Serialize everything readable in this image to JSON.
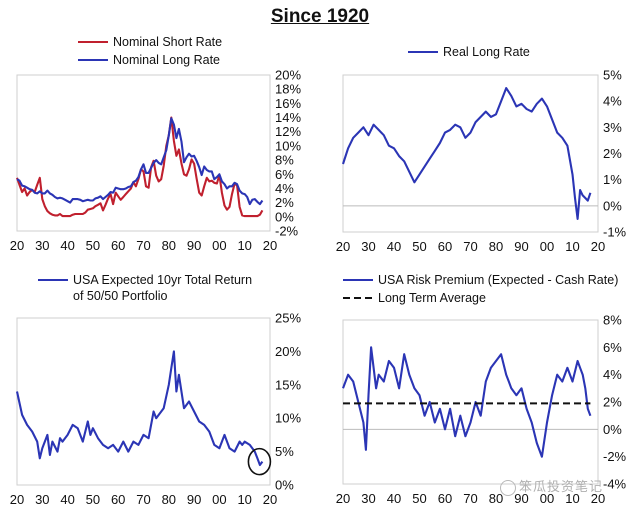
{
  "figure": {
    "title": "Since 1920",
    "watermark": "笨瓜投资笔记"
  },
  "chart_data": [
    {
      "type": "line",
      "x_ticks": [
        "20",
        "30",
        "40",
        "50",
        "60",
        "70",
        "80",
        "90",
        "00",
        "10",
        "20"
      ],
      "y_ticks": [
        "20%",
        "18%",
        "16%",
        "14%",
        "12%",
        "10%",
        "8%",
        "6%",
        "4%",
        "2%",
        "0%",
        "-2%"
      ],
      "ylim": [
        -2,
        20
      ],
      "xlim": [
        1920,
        2020
      ],
      "y_axis_side": "right",
      "legend": "top-left",
      "series": [
        {
          "name": "Nominal Short Rate",
          "color": "#c0202e",
          "x": [
            1920,
            1921,
            1922,
            1923,
            1924,
            1925,
            1926,
            1927,
            1928,
            1929,
            1930,
            1931,
            1932,
            1933,
            1934,
            1935,
            1936,
            1937,
            1938,
            1939,
            1940,
            1941,
            1942,
            1943,
            1944,
            1945,
            1946,
            1947,
            1948,
            1949,
            1950,
            1951,
            1952,
            1953,
            1954,
            1955,
            1956,
            1957,
            1958,
            1959,
            1960,
            1961,
            1962,
            1963,
            1964,
            1965,
            1966,
            1967,
            1968,
            1969,
            1970,
            1971,
            1972,
            1973,
            1974,
            1975,
            1976,
            1977,
            1978,
            1979,
            1980,
            1981,
            1982,
            1983,
            1984,
            1985,
            1986,
            1987,
            1988,
            1989,
            1990,
            1991,
            1992,
            1993,
            1994,
            1995,
            1996,
            1997,
            1998,
            1999,
            2000,
            2001,
            2002,
            2003,
            2004,
            2005,
            2006,
            2007,
            2008,
            2009,
            2010,
            2011,
            2012,
            2013,
            2014,
            2015,
            2016,
            2017
          ],
          "values": [
            5.5,
            4.5,
            3.5,
            4.0,
            3.0,
            3.5,
            3.8,
            3.5,
            4.5,
            5.5,
            2.5,
            1.5,
            0.8,
            0.5,
            0.3,
            0.2,
            0.2,
            0.4,
            0.1,
            0.1,
            0.1,
            0.1,
            0.3,
            0.4,
            0.4,
            0.4,
            0.4,
            0.6,
            1.0,
            1.1,
            1.2,
            1.5,
            1.7,
            1.9,
            0.9,
            1.7,
            2.6,
            3.2,
            1.8,
            3.4,
            2.9,
            2.4,
            2.8,
            3.2,
            3.6,
            4.0,
            4.9,
            4.3,
            5.3,
            6.7,
            6.4,
            4.3,
            4.1,
            7.0,
            7.9,
            5.8,
            5.0,
            5.3,
            7.2,
            10.0,
            11.5,
            14.0,
            10.7,
            8.6,
            9.5,
            7.5,
            6.0,
            5.8,
            6.7,
            8.1,
            7.5,
            5.4,
            3.4,
            3.0,
            4.3,
            5.5,
            5.0,
            5.1,
            4.8,
            4.7,
            5.9,
            3.4,
            1.6,
            1.0,
            1.4,
            3.2,
            4.7,
            4.4,
            1.4,
            0.2,
            0.1,
            0.1,
            0.1,
            0.1,
            0.1,
            0.1,
            0.3,
            0.9
          ]
        },
        {
          "name": "Nominal Long Rate",
          "color": "#2b35b5",
          "x": [
            1920,
            1921,
            1922,
            1923,
            1924,
            1925,
            1926,
            1927,
            1928,
            1929,
            1930,
            1931,
            1932,
            1933,
            1934,
            1935,
            1936,
            1937,
            1938,
            1939,
            1940,
            1941,
            1942,
            1943,
            1944,
            1945,
            1946,
            1947,
            1948,
            1949,
            1950,
            1951,
            1952,
            1953,
            1954,
            1955,
            1956,
            1957,
            1958,
            1959,
            1960,
            1961,
            1962,
            1963,
            1964,
            1965,
            1966,
            1967,
            1968,
            1969,
            1970,
            1971,
            1972,
            1973,
            1974,
            1975,
            1976,
            1977,
            1978,
            1979,
            1980,
            1981,
            1982,
            1983,
            1984,
            1985,
            1986,
            1987,
            1988,
            1989,
            1990,
            1991,
            1992,
            1993,
            1994,
            1995,
            1996,
            1997,
            1998,
            1999,
            2000,
            2001,
            2002,
            2003,
            2004,
            2005,
            2006,
            2007,
            2008,
            2009,
            2010,
            2011,
            2012,
            2013,
            2014,
            2015,
            2016,
            2017
          ],
          "values": [
            5.3,
            5.1,
            4.4,
            4.3,
            4.1,
            3.9,
            3.8,
            3.4,
            3.3,
            3.6,
            3.3,
            3.3,
            3.7,
            3.3,
            3.1,
            2.8,
            2.6,
            2.7,
            2.6,
            2.4,
            2.2,
            2.0,
            2.5,
            2.5,
            2.5,
            2.4,
            2.2,
            2.3,
            2.4,
            2.3,
            2.3,
            2.6,
            2.7,
            2.9,
            2.5,
            2.8,
            3.1,
            3.5,
            3.4,
            4.1,
            4.0,
            3.9,
            3.9,
            4.0,
            4.2,
            4.3,
            4.9,
            5.1,
            5.6,
            6.7,
            7.4,
            6.2,
            6.2,
            6.9,
            7.6,
            8.0,
            7.6,
            7.4,
            8.4,
            9.4,
            11.5,
            13.9,
            13.0,
            11.1,
            12.4,
            10.6,
            7.7,
            8.4,
            8.9,
            8.5,
            8.6,
            7.9,
            7.0,
            5.9,
            7.1,
            6.6,
            6.4,
            6.4,
            5.3,
            5.6,
            6.0,
            5.0,
            4.6,
            4.0,
            4.3,
            4.3,
            4.8,
            4.6,
            3.7,
            3.3,
            3.2,
            2.8,
            1.8,
            2.4,
            2.5,
            2.1,
            1.8,
            2.3
          ]
        }
      ]
    },
    {
      "type": "line",
      "x_ticks": [
        "20",
        "30",
        "40",
        "50",
        "60",
        "70",
        "80",
        "90",
        "00",
        "10",
        "20"
      ],
      "y_ticks": [
        "5%",
        "4%",
        "3%",
        "2%",
        "1%",
        "0%",
        "-1%"
      ],
      "ylim": [
        -1,
        5
      ],
      "xlim": [
        1920,
        2020
      ],
      "y_axis_side": "right",
      "zero_line": true,
      "legend": "top-right",
      "series": [
        {
          "name": "Real Long Rate",
          "color": "#2b35b5",
          "x": [
            1920,
            1922,
            1924,
            1926,
            1928,
            1930,
            1932,
            1934,
            1936,
            1938,
            1940,
            1942,
            1944,
            1946,
            1948,
            1950,
            1952,
            1954,
            1956,
            1958,
            1960,
            1962,
            1964,
            1966,
            1968,
            1970,
            1972,
            1974,
            1976,
            1978,
            1980,
            1982,
            1984,
            1986,
            1988,
            1990,
            1992,
            1994,
            1996,
            1998,
            2000,
            2002,
            2004,
            2006,
            2008,
            2010,
            2011,
            2012,
            2013,
            2014,
            2015,
            2016,
            2017
          ],
          "values": [
            1.6,
            2.2,
            2.6,
            2.8,
            3.0,
            2.7,
            3.1,
            2.9,
            2.7,
            2.3,
            2.2,
            1.9,
            1.7,
            1.3,
            0.9,
            1.2,
            1.5,
            1.8,
            2.1,
            2.4,
            2.8,
            2.9,
            3.1,
            3.0,
            2.6,
            2.8,
            3.2,
            3.4,
            3.6,
            3.4,
            3.5,
            4.0,
            4.5,
            4.2,
            3.8,
            3.9,
            3.7,
            3.6,
            3.9,
            4.1,
            3.8,
            3.3,
            2.8,
            2.6,
            2.3,
            1.2,
            0.3,
            -0.5,
            0.6,
            0.4,
            0.3,
            0.2,
            0.5
          ]
        }
      ]
    },
    {
      "type": "line",
      "x_ticks": [
        "20",
        "30",
        "40",
        "50",
        "60",
        "70",
        "80",
        "90",
        "00",
        "10",
        "20"
      ],
      "y_ticks": [
        "25%",
        "20%",
        "15%",
        "10%",
        "5%",
        "0%"
      ],
      "ylim": [
        0,
        25
      ],
      "xlim": [
        1920,
        2020
      ],
      "y_axis_side": "right",
      "legend": "top-left",
      "annotation": "circle-around-latest-value",
      "series": [
        {
          "name": "USA Expected 10yr Total Return of 50/50 Portfolio",
          "legend_lines": [
            "USA Expected 10yr Total Return",
            "of 50/50 Portfolio"
          ],
          "color": "#2b35b5",
          "x": [
            1920,
            1922,
            1924,
            1926,
            1928,
            1929,
            1930,
            1932,
            1933,
            1934,
            1936,
            1937,
            1938,
            1940,
            1942,
            1944,
            1946,
            1948,
            1949,
            1950,
            1952,
            1954,
            1956,
            1958,
            1960,
            1962,
            1964,
            1966,
            1968,
            1970,
            1972,
            1974,
            1975,
            1976,
            1978,
            1980,
            1981,
            1982,
            1983,
            1984,
            1986,
            1988,
            1990,
            1992,
            1994,
            1996,
            1998,
            2000,
            2002,
            2004,
            2006,
            2008,
            2009,
            2010,
            2012,
            2014,
            2015,
            2016,
            2017
          ],
          "values": [
            14.0,
            10.5,
            9.0,
            8.0,
            6.5,
            4.0,
            5.5,
            7.5,
            4.5,
            6.5,
            5.0,
            7.0,
            6.5,
            7.5,
            9.0,
            8.5,
            6.5,
            9.5,
            7.5,
            8.5,
            7.0,
            6.0,
            5.5,
            6.0,
            5.0,
            6.5,
            5.0,
            6.5,
            6.0,
            7.5,
            7.0,
            11.0,
            10.0,
            10.5,
            11.5,
            15.0,
            17.5,
            20.0,
            14.0,
            16.5,
            11.5,
            12.5,
            11.0,
            9.5,
            9.0,
            8.0,
            6.0,
            5.5,
            7.5,
            5.5,
            5.0,
            6.5,
            6.0,
            6.5,
            6.0,
            5.0,
            4.0,
            3.0,
            3.5
          ]
        }
      ]
    },
    {
      "type": "line",
      "x_ticks": [
        "20",
        "30",
        "40",
        "50",
        "60",
        "70",
        "80",
        "90",
        "00",
        "10",
        "20"
      ],
      "y_ticks": [
        "8%",
        "6%",
        "4%",
        "2%",
        "0%",
        "-2%",
        "-4%"
      ],
      "ylim": [
        -4,
        8
      ],
      "xlim": [
        1920,
        2020
      ],
      "y_axis_side": "right",
      "zero_line": true,
      "legend": "top-left",
      "series": [
        {
          "name": "USA Risk Premium (Expected - Cash Rate)",
          "color": "#2b35b5",
          "x": [
            1920,
            1922,
            1924,
            1926,
            1928,
            1929,
            1930,
            1931,
            1932,
            1933,
            1934,
            1936,
            1938,
            1940,
            1942,
            1944,
            1946,
            1948,
            1950,
            1952,
            1954,
            1956,
            1958,
            1960,
            1962,
            1964,
            1966,
            1968,
            1970,
            1972,
            1974,
            1976,
            1978,
            1980,
            1982,
            1984,
            1985,
            1986,
            1988,
            1990,
            1992,
            1994,
            1996,
            1998,
            2000,
            2002,
            2004,
            2006,
            2008,
            2010,
            2012,
            2013,
            2014,
            2015,
            2016,
            2017
          ],
          "values": [
            3.0,
            4.0,
            3.5,
            2.0,
            0.5,
            -1.5,
            2.5,
            6.0,
            4.5,
            3.0,
            4.0,
            3.5,
            5.0,
            4.5,
            3.0,
            5.5,
            4.0,
            3.0,
            2.5,
            1.0,
            2.0,
            0.5,
            1.5,
            0.0,
            1.5,
            -0.5,
            1.0,
            -0.5,
            0.5,
            2.0,
            1.0,
            3.5,
            4.5,
            5.0,
            5.5,
            4.0,
            3.5,
            3.0,
            2.5,
            3.0,
            1.5,
            0.5,
            -1.0,
            -2.0,
            0.5,
            2.5,
            4.0,
            3.5,
            4.5,
            3.5,
            5.0,
            4.5,
            4.0,
            3.0,
            1.5,
            1.0
          ]
        },
        {
          "name": "Long Term Average",
          "color": "#111111",
          "dashed": true,
          "x": [
            1920,
            2017
          ],
          "values": [
            1.9,
            1.9
          ]
        }
      ]
    }
  ]
}
